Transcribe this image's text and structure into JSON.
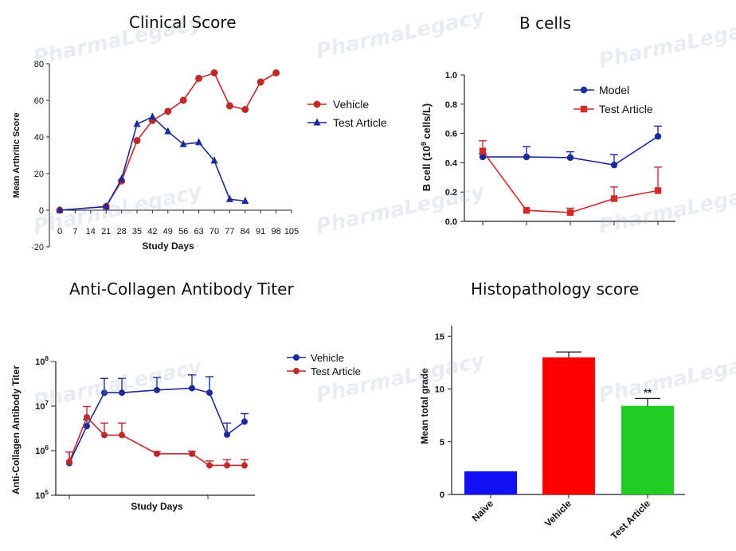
{
  "watermark": {
    "brand": "PharmaLegacy"
  },
  "colors": {
    "red": "#c0282a",
    "blue": "#1c2a9c",
    "bar_blue": "#1010f0",
    "bar_red": "#ff0000",
    "bar_green": "#22cc22"
  },
  "chart_data": [
    {
      "id": "clinical",
      "type": "line",
      "title": "Clinical Score",
      "xlabel": "Study Days",
      "ylabel": "Mean Arthritic Score",
      "xlim": [
        0,
        105
      ],
      "ylim": [
        -20,
        80
      ],
      "x_ticks": [
        0,
        7,
        14,
        21,
        28,
        35,
        42,
        49,
        56,
        63,
        70,
        77,
        84,
        91,
        98,
        105
      ],
      "y_ticks": [
        -20,
        0,
        20,
        40,
        60,
        80
      ],
      "legend_position": "right",
      "series": [
        {
          "name": "Vehicle",
          "marker": "circle",
          "color": "#c0282a",
          "x": [
            0,
            21,
            28,
            35,
            42,
            49,
            56,
            63,
            70,
            77,
            84,
            91,
            98
          ],
          "y": [
            0,
            2,
            16,
            38,
            49,
            54,
            60,
            72,
            75,
            57,
            55,
            70,
            75
          ]
        },
        {
          "name": "Test Article",
          "marker": "triangle",
          "color": "#1c2a9c",
          "x": [
            0,
            21,
            28,
            35,
            42,
            49,
            56,
            63,
            70,
            77,
            84
          ],
          "y": [
            0,
            2,
            17,
            47,
            51,
            43,
            36,
            37,
            27,
            6,
            5
          ]
        }
      ]
    },
    {
      "id": "bcells",
      "type": "line",
      "title": "B cells",
      "ylabel": "B cell (10",
      "ylabel_sup": "9",
      "ylabel_tail": " cells/L)",
      "ylim": [
        0,
        1.0
      ],
      "y_ticks": [
        "0.0",
        "0.2",
        "0.4",
        "0.6",
        "0.8",
        "1.0"
      ],
      "legend_position": "top-right",
      "series": [
        {
          "name": "Model",
          "marker": "circle",
          "color": "#1c2a9c",
          "x": [
            0,
            1,
            2,
            3,
            4
          ],
          "y": [
            0.44,
            0.44,
            0.435,
            0.385,
            0.58
          ],
          "err": [
            0.02,
            0.07,
            0.04,
            0.07,
            0.07
          ]
        },
        {
          "name": "Test Article",
          "marker": "square",
          "color": "#d42a2a",
          "x": [
            0,
            1,
            2,
            3,
            4
          ],
          "y": [
            0.48,
            0.075,
            0.06,
            0.155,
            0.21
          ],
          "err": [
            0.07,
            0.0,
            0.03,
            0.08,
            0.16
          ]
        }
      ]
    },
    {
      "id": "titer",
      "type": "line",
      "title": "Anti-Collagen Antibody Titer",
      "xlabel": "Study Days",
      "ylabel": "Anti-Collagen Antibody Titer",
      "yscale": "log",
      "ylim_exp": [
        5,
        8
      ],
      "y_tick_base": "10",
      "y_tick_exponents": [
        "5",
        "6",
        "7",
        "8"
      ],
      "legend_position": "top-right",
      "series": [
        {
          "name": "Vehicle",
          "marker": "circle",
          "color": "#1c2a9c",
          "x": [
            0,
            1,
            2,
            3,
            5,
            6,
            7,
            8,
            9
          ],
          "y": [
            5.72,
            6.55,
            7.3,
            7.3,
            7.36,
            7.4,
            7.3,
            6.36,
            6.65
          ],
          "err_up": [
            0.25,
            0.15,
            0.32,
            0.32,
            0.28,
            0.3,
            0.36,
            0.26,
            0.18
          ]
        },
        {
          "name": "Test Article",
          "marker": "circle",
          "color": "#c0282a",
          "x": [
            0,
            1,
            2,
            3,
            5,
            6,
            7,
            8,
            9
          ],
          "y": [
            5.75,
            6.75,
            6.35,
            6.35,
            5.93,
            5.93,
            5.67,
            5.67,
            5.67
          ],
          "err_up": [
            0.22,
            0.24,
            0.27,
            0.27,
            0.05,
            0.06,
            0.1,
            0.13,
            0.13
          ]
        }
      ]
    },
    {
      "id": "histo",
      "type": "bar",
      "title": "Histopathology score",
      "ylabel": "Mean total  grade",
      "ylim": [
        0,
        16
      ],
      "y_ticks": [
        0,
        5,
        10,
        15
      ],
      "categories": [
        "Naive",
        "Vehicle",
        "Test Article"
      ],
      "values": [
        2.2,
        13.0,
        8.4
      ],
      "err": [
        0,
        0.5,
        0.7
      ],
      "colors": [
        "#1010f0",
        "#ff0000",
        "#22cc22"
      ],
      "annotations": [
        "",
        "",
        "**"
      ]
    }
  ]
}
